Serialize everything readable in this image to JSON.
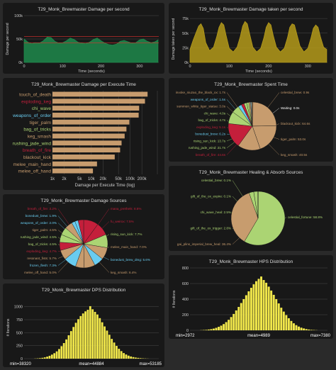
{
  "colors": {
    "background": "#2a2a2a",
    "panel": "#181818",
    "grid": "#555555",
    "text": "#cccccc",
    "dps_area": "#1f8a4c",
    "dtps_area": "#b49a1a",
    "hist_bar": "#f2e84b",
    "red_line": "#e0302f"
  },
  "chart_data": [
    {
      "id": "dps",
      "type": "area",
      "title": "T29_Monk_Brewmaster Damage per second",
      "xlabel": "Time (seconds)",
      "ylabel": "Damage per second",
      "xlim": [
        0,
        350
      ],
      "ylim": [
        0,
        100000
      ],
      "xticks": [
        "0",
        "100",
        "200",
        "300"
      ],
      "yticks": [
        "0k",
        "50k",
        "100k"
      ],
      "reference_lines": [
        42000,
        55000
      ],
      "x": [
        0,
        10,
        20,
        30,
        40,
        50,
        60,
        70,
        80,
        90,
        100,
        110,
        120,
        130,
        140,
        150,
        160,
        170,
        180,
        190,
        200,
        210,
        220,
        230,
        240,
        250,
        260,
        270,
        280,
        290,
        300,
        310,
        320,
        330,
        340,
        348
      ],
      "values": [
        50000,
        43000,
        40000,
        42000,
        41000,
        46000,
        54000,
        53000,
        45000,
        41000,
        42000,
        46000,
        52000,
        49000,
        43000,
        41000,
        40000,
        43000,
        49000,
        52000,
        46000,
        41000,
        38000,
        37000,
        39000,
        45000,
        47000,
        44000,
        41000,
        42000,
        48000,
        50000,
        45000,
        42000,
        44000,
        48000
      ]
    },
    {
      "id": "dtps",
      "type": "area",
      "title": "T29_Monk_Brewmaster Damage taken per second",
      "xlabel": "Time (seconds)",
      "ylabel": "Damage taken per second",
      "xlim": [
        0,
        350
      ],
      "ylim": [
        0,
        80000
      ],
      "xticks": [
        "0",
        "100",
        "200",
        "300"
      ],
      "yticks": [
        "0k",
        "25k",
        "50k",
        "75k"
      ],
      "x": [
        0,
        8,
        16,
        22,
        28,
        34,
        40,
        50,
        60,
        68,
        74,
        80,
        86,
        92,
        100,
        110,
        120,
        128,
        134,
        140,
        146,
        152,
        160,
        170,
        180,
        188,
        194,
        200,
        206,
        212,
        220,
        230,
        240,
        248,
        254,
        260,
        266,
        272,
        280,
        290,
        300,
        308,
        314,
        320,
        326,
        332,
        340,
        348
      ],
      "values": [
        22000,
        38000,
        52000,
        62000,
        66000,
        58000,
        34000,
        20000,
        26000,
        44000,
        60000,
        68000,
        64000,
        46000,
        24000,
        18000,
        26000,
        44000,
        62000,
        70000,
        66000,
        48000,
        26000,
        18000,
        24000,
        42000,
        60000,
        68000,
        64000,
        46000,
        26000,
        18000,
        24000,
        42000,
        60000,
        66000,
        64000,
        48000,
        28000,
        18000,
        24000,
        42000,
        58000,
        64000,
        60000,
        44000,
        26000,
        22000
      ]
    },
    {
      "id": "dpet",
      "type": "bar",
      "title": "T29_Monk_Brewmaster Damage per Execute Time",
      "xlabel": "Damage per Execute Time (log)",
      "xscale": "log",
      "xlim": [
        1000,
        500000
      ],
      "xticks": [
        {
          "v": 1000,
          "label": "1k"
        },
        {
          "v": 2000,
          "label": "2k"
        },
        {
          "v": 5000,
          "label": "5k"
        },
        {
          "v": 10000,
          "label": "10k"
        },
        {
          "v": 20000,
          "label": "20k"
        },
        {
          "v": 50000,
          "label": "50k"
        },
        {
          "v": 100000,
          "label": "100k"
        },
        {
          "v": 200000,
          "label": "200k"
        },
        {
          "v": 500000,
          "label": ""
        }
      ],
      "categories": [
        "touch_of_death",
        "exploding_keg",
        "chi_wave",
        "weapons_of_order",
        "tiger_palm",
        "bag_of_tricks",
        "keg_smash",
        "rushing_jade_wind",
        "breath_of_fire",
        "blackout_kick",
        "melee_main_hand",
        "melee_off_hand"
      ],
      "values": [
        280000,
        240000,
        170000,
        165000,
        95000,
        80000,
        72000,
        60000,
        55000,
        40000,
        14000,
        11000
      ],
      "colors": [
        "#c79c6e",
        "#c41f3b",
        "#abd473",
        "#69ccf0",
        "#c79c6e",
        "#abd473",
        "#c79c6e",
        "#abd473",
        "#c41f3b",
        "#c79c6e",
        "#c79c6e",
        "#c79c6e"
      ]
    },
    {
      "id": "spent",
      "type": "pie",
      "title": "T29_Monk_Brewmaster Spent Time",
      "labels": [
        {
          "text": "invoke_niuzao_the_black_ox: 1.7s",
          "side": "left",
          "color": "#c79c6e"
        },
        {
          "text": "weapons_of_order: 1.5s",
          "side": "left",
          "color": "#69ccf0"
        },
        {
          "text": "summon_white_tiger_statue: 3.0s",
          "side": "left",
          "color": "#c79c6e"
        },
        {
          "text": "chi_wave: 4.0s",
          "side": "left",
          "color": "#abd473"
        },
        {
          "text": "bag_of_tricks: 4.7s",
          "side": "left",
          "color": "#abd473"
        },
        {
          "text": "exploding_keg: 5.1s",
          "side": "left",
          "color": "#c41f3b"
        },
        {
          "text": "bonedust_brew: 6.2s",
          "side": "left",
          "color": "#69ccf0"
        },
        {
          "text": "rising_sun_kick: 13.7s",
          "side": "left",
          "color": "#abd473"
        },
        {
          "text": "rushing_jade_wind: 21.7s",
          "side": "left",
          "color": "#abd473"
        },
        {
          "text": "breath_of_fire: 44.6s",
          "side": "left",
          "color": "#c41f3b"
        },
        {
          "text": "celestial_brew: 0.9s",
          "side": "right",
          "color": "#c79c6e"
        },
        {
          "text": "Waiting: 0.0s",
          "side": "right",
          "color": "#ffffff"
        },
        {
          "text": "blackout_kick: 64.6s",
          "side": "right",
          "color": "#c79c6e"
        },
        {
          "text": "tiger_palm: 53.0s",
          "side": "right",
          "color": "#c79c6e"
        },
        {
          "text": "keg_smash: 40.5s",
          "side": "right",
          "color": "#c79c6e"
        }
      ],
      "values": [
        0.9,
        0.0,
        64.6,
        53.0,
        40.5,
        44.6,
        21.7,
        13.7,
        6.2,
        5.1,
        4.7,
        4.0,
        3.0,
        1.5,
        1.7
      ],
      "colors": [
        "#c79c6e",
        "#ffffff",
        "#c79c6e",
        "#c79c6e",
        "#c79c6e",
        "#c41f3b",
        "#abd473",
        "#abd473",
        "#69ccf0",
        "#c41f3b",
        "#abd473",
        "#abd473",
        "#c79c6e",
        "#69ccf0",
        "#c79c6e"
      ]
    },
    {
      "id": "heal",
      "type": "pie",
      "title": "T29_Monk_Brewmaster Healing & Absorb Sources",
      "labels": [
        {
          "text": "celestial_brew: 0.1%",
          "side": "left",
          "color": "#abd473"
        },
        {
          "text": "gift_of_the_ox_expire: 0.1%",
          "side": "left",
          "color": "#abd473"
        },
        {
          "text": "chi_wave_heal: 2.5%",
          "side": "left",
          "color": "#abd473"
        },
        {
          "text": "gift_of_the_ox_trigger: 2.8%",
          "side": "left",
          "color": "#abd473"
        },
        {
          "text": "gai_plins_imperial_brew_heal: 36.4%",
          "side": "left",
          "color": "#c79c6e"
        },
        {
          "text": "celestial_fortune: 58.8%",
          "side": "right",
          "color": "#abd473"
        }
      ],
      "values": [
        0.1,
        58.8,
        36.4,
        2.8,
        2.5,
        0.1
      ],
      "colors": [
        "#abd473",
        "#abd473",
        "#c79c6e",
        "#abd473",
        "#abd473",
        "#abd473"
      ]
    },
    {
      "id": "sources",
      "type": "pie",
      "title": "T29_Monk_Brewmaster Damage Sources",
      "labels": [
        {
          "text": "breath_of_fire: 3.2%",
          "side": "left",
          "color": "#c41f3b"
        },
        {
          "text": "bonedust_brew: 1.9%",
          "side": "left",
          "color": "#69ccf0"
        },
        {
          "text": "weapons_of_order: 2.0%",
          "side": "left",
          "color": "#69ccf0"
        },
        {
          "text": "tiger_palm: 4.5%",
          "side": "left",
          "color": "#c79c6e"
        },
        {
          "text": "rushing_jade_wind: 4.5%",
          "side": "left",
          "color": "#abd473"
        },
        {
          "text": "bag_of_tricks: 4.5%",
          "side": "left",
          "color": "#abd473"
        },
        {
          "text": "exploding_keg: 4.7%",
          "side": "left",
          "color": "#c41f3b"
        },
        {
          "text": "resonant_fists: 5.7%",
          "side": "left",
          "color": "#c79c6e"
        },
        {
          "text": "frozen_flesh: 7.3%",
          "side": "left",
          "color": "#69ccf0"
        },
        {
          "text": "melee_off_hand: 5.0%",
          "side": "left",
          "color": "#c79c6e"
        },
        {
          "text": "mana_prethels: 8.6%",
          "side": "right",
          "color": "#c41f3b"
        },
        {
          "text": "fu_weirox: 7.5%",
          "side": "right",
          "color": "#c41f3b"
        },
        {
          "text": "rising_sun_kick: 7.7%",
          "side": "right",
          "color": "#abd473"
        },
        {
          "text": "melee_main_hand: 7.0%",
          "side": "right",
          "color": "#c79c6e"
        },
        {
          "text": "bonedust_brew_dmg: 5.6%",
          "side": "right",
          "color": "#69ccf0"
        },
        {
          "text": "keg_smash: 6.4%",
          "side": "right",
          "color": "#c79c6e"
        }
      ],
      "values": [
        8.6,
        7.5,
        7.7,
        7.0,
        5.6,
        6.4,
        5.0,
        7.3,
        5.7,
        4.7,
        4.5,
        4.5,
        4.5,
        2.0,
        1.9,
        3.2
      ],
      "colors": [
        "#c41f3b",
        "#c41f3b",
        "#abd473",
        "#c79c6e",
        "#69ccf0",
        "#c79c6e",
        "#c79c6e",
        "#69ccf0",
        "#c79c6e",
        "#c41f3b",
        "#abd473",
        "#abd473",
        "#c79c6e",
        "#69ccf0",
        "#69ccf0",
        "#c41f3b"
      ]
    },
    {
      "id": "dps_dist",
      "type": "bar",
      "title": "T29_Monk_Brewmaster DPS Distribution",
      "ylabel": "# Iterations",
      "ylim": [
        0,
        1200
      ],
      "yticks": [
        "0",
        "250",
        "500",
        "750",
        "1000"
      ],
      "bottom_labels": [
        "min=38320",
        "mean=44884",
        "max=53185"
      ],
      "values": [
        3,
        6,
        10,
        16,
        25,
        38,
        55,
        78,
        105,
        140,
        185,
        240,
        300,
        370,
        450,
        530,
        610,
        690,
        760,
        820,
        870,
        910,
        940,
        1010,
        950,
        900,
        850,
        780,
        700,
        620,
        540,
        460,
        380,
        310,
        245,
        190,
        145,
        108,
        80,
        58,
        42,
        30,
        21,
        15,
        10,
        6,
        4,
        2
      ]
    },
    {
      "id": "hps_dist",
      "type": "bar",
      "title": "T29_Monk_Brewmaster HPS Distribution",
      "ylabel": "# Iterations",
      "ylim": [
        0,
        800
      ],
      "yticks": [
        "0",
        "200",
        "400",
        "600",
        "800"
      ],
      "bottom_labels": [
        "min=2972",
        "mean=4989",
        "max=7380"
      ],
      "values": [
        2,
        4,
        6,
        10,
        15,
        22,
        32,
        45,
        60,
        80,
        105,
        135,
        170,
        210,
        255,
        300,
        350,
        400,
        450,
        500,
        545,
        590,
        630,
        660,
        690,
        645,
        610,
        560,
        510,
        455,
        400,
        345,
        290,
        240,
        195,
        155,
        120,
        90,
        66,
        48,
        34,
        24,
        16,
        10,
        6,
        4,
        2
      ]
    }
  ]
}
